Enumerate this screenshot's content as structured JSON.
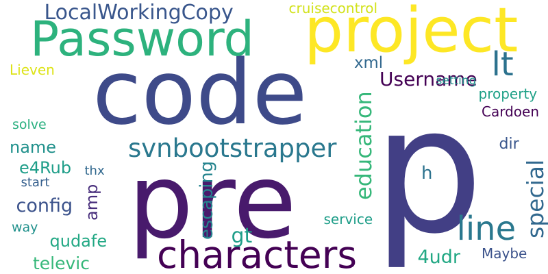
{
  "words": [
    {
      "text": "code",
      "color": "#3e4a89",
      "rotate": 0
    },
    {
      "text": "p",
      "color": "#423f85",
      "rotate": 0
    },
    {
      "text": "pre",
      "color": "#481a6c",
      "rotate": 0
    },
    {
      "text": "project",
      "color": "#fde725",
      "rotate": 0
    },
    {
      "text": "Password",
      "color": "#2db27d",
      "rotate": 0
    },
    {
      "text": "characters",
      "color": "#440154",
      "rotate": 0
    },
    {
      "text": "svnbootstrapper",
      "color": "#2a788e",
      "rotate": 0
    },
    {
      "text": "LocalWorkingCopy",
      "color": "#39568c",
      "rotate": 0
    },
    {
      "text": "line",
      "color": "#2a788e",
      "rotate": 0
    },
    {
      "text": "lt",
      "color": "#2c728e",
      "rotate": 0
    },
    {
      "text": "Username",
      "color": "#440154",
      "rotate": 0
    },
    {
      "text": "education",
      "color": "#35b779",
      "rotate": -90
    },
    {
      "text": "xml",
      "color": "#31688e",
      "rotate": 0
    },
    {
      "text": "name",
      "color": "#21918c",
      "rotate": 0
    },
    {
      "text": "config",
      "color": "#3b528b",
      "rotate": 0
    },
    {
      "text": "e4Rub",
      "color": "#1f9e89",
      "rotate": 0
    },
    {
      "text": "qudafe",
      "color": "#22a884",
      "rotate": 0
    },
    {
      "text": "televic",
      "color": "#35b779",
      "rotate": 0
    },
    {
      "text": "gt",
      "color": "#1f9e89",
      "rotate": 0
    },
    {
      "text": "special",
      "color": "#31688e",
      "rotate": -90
    },
    {
      "text": "dir",
      "color": "#39568c",
      "rotate": 0
    },
    {
      "text": "h",
      "color": "#2c728e",
      "rotate": 0
    },
    {
      "text": "amp",
      "color": "#472d7b",
      "rotate": -90
    },
    {
      "text": "escaping",
      "color": "#25848e",
      "rotate": -90
    },
    {
      "text": "4udr",
      "color": "#22a884",
      "rotate": 0
    },
    {
      "text": "cruisecontrol",
      "color": "#d2e21b",
      "rotate": 0
    },
    {
      "text": "setting",
      "color": "#21918c",
      "rotate": 0
    },
    {
      "text": "property",
      "color": "#1fa187",
      "rotate": 0
    },
    {
      "text": "Cardoen",
      "color": "#440154",
      "rotate": 0
    },
    {
      "text": "Lieven",
      "color": "#dde318",
      "rotate": 0
    },
    {
      "text": "solve",
      "color": "#29af7f",
      "rotate": 0
    },
    {
      "text": "thx",
      "color": "#31688e",
      "rotate": 0
    },
    {
      "text": "start",
      "color": "#355f8d",
      "rotate": 0
    },
    {
      "text": "way",
      "color": "#21918c",
      "rotate": 0
    },
    {
      "text": "service",
      "color": "#1f9e89",
      "rotate": 0
    },
    {
      "text": "Maybe",
      "color": "#3b528b",
      "rotate": 0
    }
  ]
}
